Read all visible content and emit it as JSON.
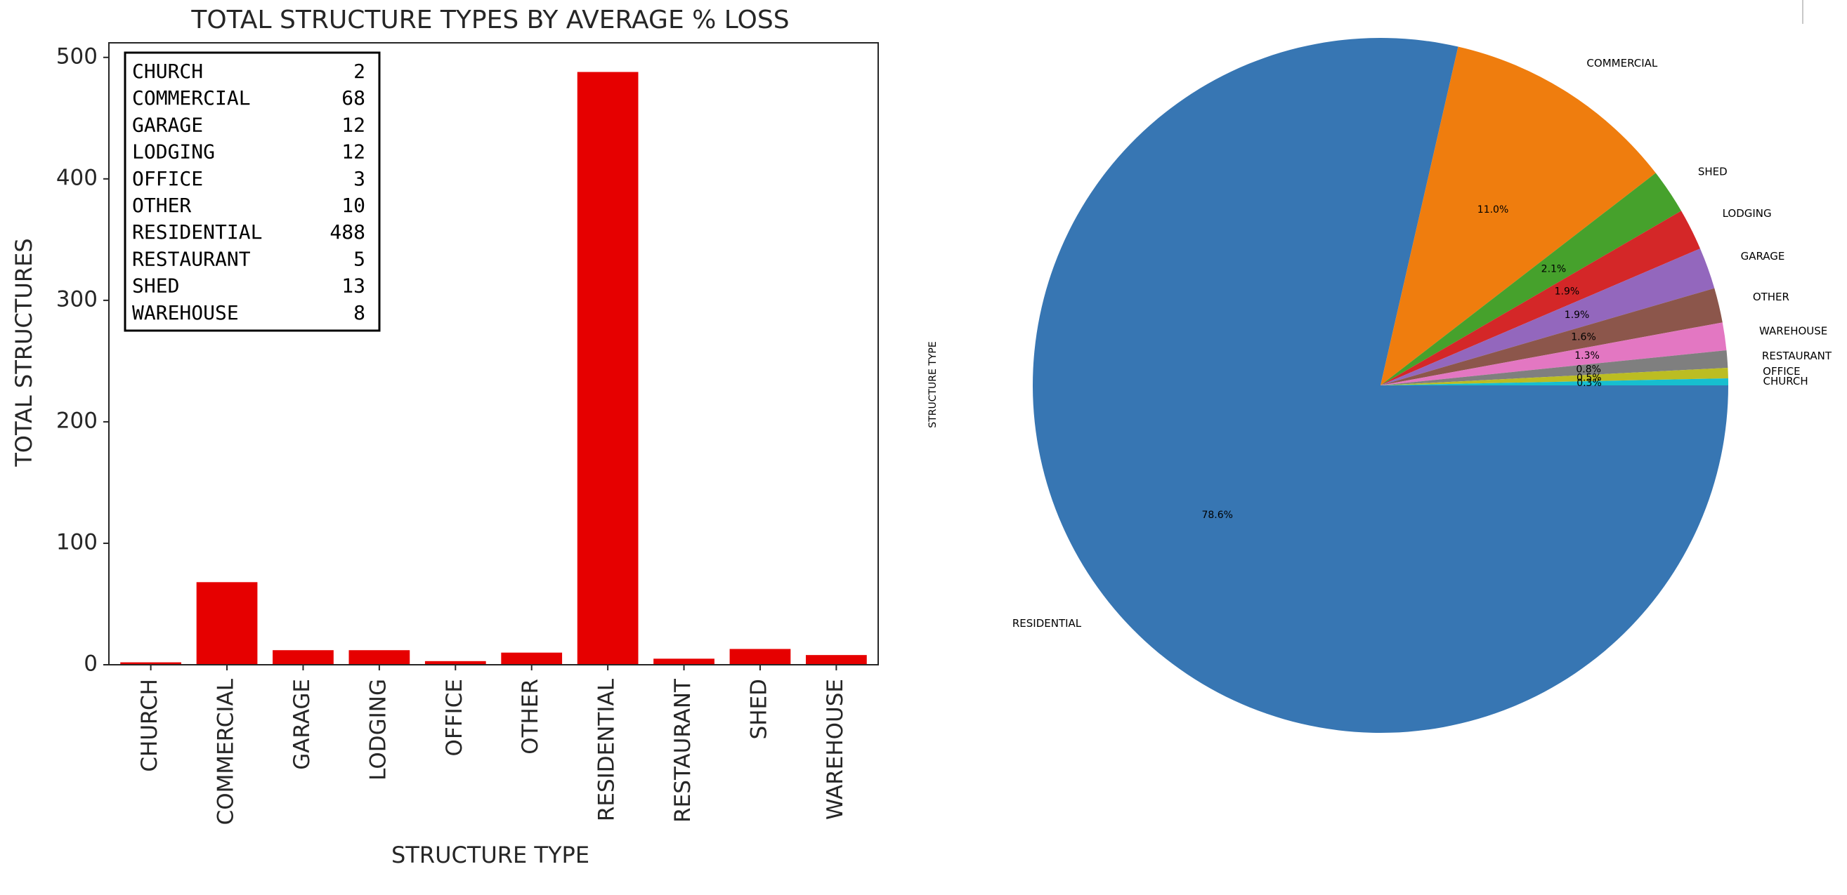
{
  "chart_data": [
    {
      "type": "bar",
      "title": "TOTAL STRUCTURE TYPES BY AVERAGE % LOSS",
      "xlabel": "STRUCTURE TYPE",
      "ylabel": "TOTAL STRUCTURES",
      "categories": [
        "CHURCH",
        "COMMERCIAL",
        "GARAGE",
        "LODGING",
        "OFFICE",
        "OTHER",
        "RESIDENTIAL",
        "RESTAURANT",
        "SHED",
        "WAREHOUSE"
      ],
      "values": [
        2,
        68,
        12,
        12,
        3,
        10,
        488,
        5,
        13,
        8
      ],
      "yticks": [
        0,
        100,
        200,
        300,
        400,
        500
      ],
      "ylim": [
        0,
        512
      ],
      "bar_color": "#e60000",
      "legend_placement": "top-left",
      "table_rows": [
        {
          "label": "CHURCH",
          "value": "2"
        },
        {
          "label": "COMMERCIAL",
          "value": "68"
        },
        {
          "label": "GARAGE",
          "value": "12"
        },
        {
          "label": "LODGING",
          "value": "12"
        },
        {
          "label": "OFFICE",
          "value": "3"
        },
        {
          "label": "OTHER",
          "value": "10"
        },
        {
          "label": "RESIDENTIAL",
          "value": "488"
        },
        {
          "label": "RESTAURANT",
          "value": "5"
        },
        {
          "label": "SHED",
          "value": "13"
        },
        {
          "label": "WAREHOUSE",
          "value": "8"
        }
      ]
    },
    {
      "type": "pie",
      "ylabel": "STRUCTURE TYPE",
      "start_angle_deg": 0,
      "direction": "clockwise",
      "slices": [
        {
          "label": "RESIDENTIAL",
          "value": 488,
          "pct": "78.6%",
          "color": "#3776b3"
        },
        {
          "label": "COMMERCIAL",
          "value": 68,
          "pct": "11.0%",
          "color": "#ef7d0e"
        },
        {
          "label": "SHED",
          "value": 13,
          "pct": "2.1%",
          "color": "#46a12c"
        },
        {
          "label": "LODGING",
          "value": 12,
          "pct": "1.9%",
          "color": "#d42728"
        },
        {
          "label": "GARAGE",
          "value": 12,
          "pct": "1.9%",
          "color": "#9367bd"
        },
        {
          "label": "OTHER",
          "value": 10,
          "pct": "1.6%",
          "color": "#8c564b"
        },
        {
          "label": "WAREHOUSE",
          "value": 8,
          "pct": "1.3%",
          "color": "#e377c2"
        },
        {
          "label": "RESTAURANT",
          "value": 5,
          "pct": "0.8%",
          "color": "#7f7f7f"
        },
        {
          "label": "OFFICE",
          "value": 3,
          "pct": "0.5%",
          "color": "#bcbd22"
        },
        {
          "label": "CHURCH",
          "value": 2,
          "pct": "0.3%",
          "color": "#17becf"
        }
      ]
    }
  ]
}
